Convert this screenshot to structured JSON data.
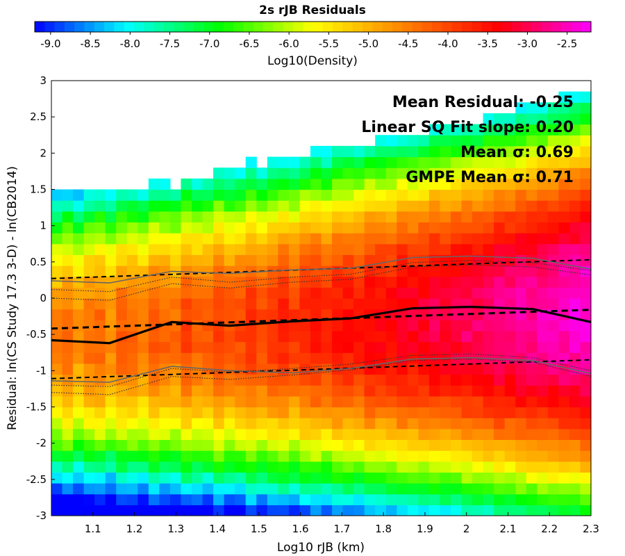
{
  "chart_data": {
    "type": "heatmap",
    "title": "2s rJB Residuals",
    "xlabel": "Log10 rJB (km)",
    "ylabel": "Residual: ln(CS Study 17.3 3-D) - ln(CB2014)",
    "colorbar_label": "Log10(Density)",
    "xlim": [
      1.0,
      2.3
    ],
    "ylim": [
      -3,
      3
    ],
    "clim": [
      -9.2,
      -2.2
    ],
    "x_ticks": [
      "1.1",
      "1.2",
      "1.3",
      "1.4",
      "1.5",
      "1.6",
      "1.7",
      "1.8",
      "1.9",
      "2",
      "2.1",
      "2.2",
      "2.3"
    ],
    "y_ticks": [
      "-3",
      "-2.5",
      "-2",
      "-1.5",
      "-1",
      "-0.5",
      "0",
      "0.5",
      "1",
      "1.5",
      "2",
      "2.5",
      "3"
    ],
    "colorbar_ticks": [
      "-9.0",
      "-8.5",
      "-8.0",
      "-7.5",
      "-7.0",
      "-6.5",
      "-6.0",
      "-5.5",
      "-5.0",
      "-4.5",
      "-4.0",
      "-3.5",
      "-3.0",
      "-2.5"
    ],
    "colormap": [
      "#0000ff",
      "#00ffff",
      "#00ff00",
      "#ffff00",
      "#ff8000",
      "#ff0000",
      "#ff00ff"
    ],
    "annotations": [
      "Mean Residual: -0.25",
      "Linear SQ Fit slope: 0.20",
      "Mean σ: 0.69",
      "GMPE Mean σ: 0.71"
    ],
    "series": [
      {
        "style": "solid-thick",
        "color": "#000000",
        "x": [
          1.0,
          1.14,
          1.29,
          1.43,
          1.58,
          1.72,
          1.87,
          2.01,
          2.16,
          2.3
        ],
        "y": [
          -0.58,
          -0.62,
          -0.33,
          -0.38,
          -0.32,
          -0.28,
          -0.14,
          -0.12,
          -0.15,
          -0.33
        ]
      },
      {
        "style": "dashed-thick",
        "color": "#000000",
        "x": [
          1.0,
          2.3
        ],
        "y": [
          -0.42,
          -0.16
        ]
      },
      {
        "style": "dashed",
        "color": "#000000",
        "x": [
          1.0,
          2.3
        ],
        "y": [
          0.27,
          0.53
        ]
      },
      {
        "style": "dashed",
        "color": "#000000",
        "x": [
          1.0,
          2.3
        ],
        "y": [
          -1.11,
          -0.85
        ]
      },
      {
        "style": "solid-thin",
        "color": "#666666",
        "x": [
          1.0,
          1.14,
          1.29,
          1.43,
          1.58,
          1.72,
          1.87,
          2.01,
          2.16,
          2.3
        ],
        "y": [
          0.24,
          0.21,
          0.37,
          0.34,
          0.39,
          0.41,
          0.56,
          0.58,
          0.55,
          0.4
        ]
      },
      {
        "style": "solid-thin",
        "color": "#666666",
        "x": [
          1.0,
          1.14,
          1.29,
          1.43,
          1.58,
          1.72,
          1.87,
          2.01,
          2.16,
          2.3
        ],
        "y": [
          -1.14,
          -1.16,
          -0.94,
          -1.0,
          -1.03,
          -0.97,
          -0.84,
          -0.82,
          -0.86,
          -1.04
        ]
      },
      {
        "style": "dotted",
        "color": "#333333",
        "x": [
          1.0,
          1.14,
          1.29,
          1.43,
          1.58,
          1.72,
          1.87,
          2.01,
          2.16,
          2.3
        ],
        "y": [
          0.12,
          0.09,
          0.29,
          0.22,
          0.29,
          0.33,
          0.49,
          0.52,
          0.49,
          0.38
        ]
      },
      {
        "style": "dotted",
        "color": "#333333",
        "x": [
          1.0,
          1.14,
          1.29,
          1.43,
          1.58,
          1.72,
          1.87,
          2.01,
          2.16,
          2.3
        ],
        "y": [
          0.0,
          -0.03,
          0.2,
          0.14,
          0.22,
          0.26,
          0.43,
          0.46,
          0.43,
          0.32
        ]
      },
      {
        "style": "dotted",
        "color": "#333333",
        "x": [
          1.0,
          1.14,
          1.29,
          1.43,
          1.58,
          1.72,
          1.87,
          2.01,
          2.16,
          2.3
        ],
        "y": [
          -1.3,
          -1.33,
          -1.08,
          -1.12,
          -1.06,
          -0.99,
          -0.86,
          -0.84,
          -0.88,
          -1.08
        ]
      },
      {
        "style": "dotted",
        "color": "#333333",
        "x": [
          1.0,
          1.14,
          1.29,
          1.43,
          1.58,
          1.72,
          1.87,
          2.01,
          2.16,
          2.3
        ],
        "y": [
          -1.2,
          -1.22,
          -0.97,
          -1.02,
          -0.97,
          -0.91,
          -0.79,
          -0.77,
          -0.82,
          -1.0
        ]
      }
    ]
  }
}
